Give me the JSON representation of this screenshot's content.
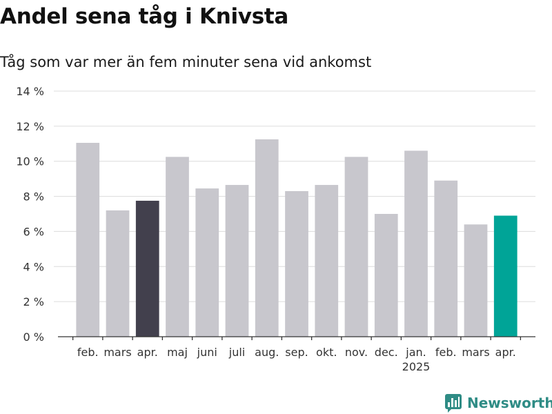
{
  "chart_data": {
    "type": "bar",
    "title": "Andel sena tåg i Knivsta",
    "subtitle": "Tåg som var mer än fem minuter sena vid ankomst",
    "categories": [
      "feb.",
      "mars",
      "apr.",
      "maj",
      "juni",
      "juli",
      "aug.",
      "sep.",
      "okt.",
      "nov.",
      "dec.",
      "jan.",
      "feb.",
      "mars",
      "apr."
    ],
    "year_labels": [
      {
        "index": 11,
        "label": "2025"
      }
    ],
    "values": [
      11.05,
      7.2,
      7.75,
      10.25,
      8.45,
      8.65,
      11.25,
      8.3,
      8.65,
      10.25,
      7.0,
      10.6,
      8.9,
      6.4,
      6.9
    ],
    "highlight": {
      "3": "dark",
      "15": "teal"
    },
    "bar_colors": {
      "default": "#c8c7cd",
      "dark": "#42404d",
      "teal": "#00a497"
    },
    "highlight_indices": {
      "dark": 2,
      "teal": 14
    },
    "ylim": [
      0,
      14
    ],
    "yticks": [
      0,
      2,
      4,
      6,
      8,
      10,
      12,
      14
    ],
    "ytick_suffix": " %",
    "xlabel": "",
    "ylabel": "",
    "grid": true
  },
  "brand": {
    "name": "Newsworthy",
    "icon": "newsworthy-logo-icon",
    "color": "#2f8c85"
  }
}
